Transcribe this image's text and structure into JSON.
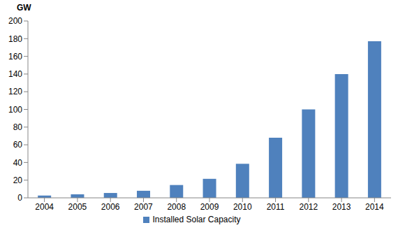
{
  "chart_data": {
    "type": "bar",
    "y_label": "GW",
    "categories": [
      "2004",
      "2005",
      "2006",
      "2007",
      "2008",
      "2009",
      "2010",
      "2011",
      "2012",
      "2013",
      "2014"
    ],
    "series": [
      {
        "name": "Installed Solar Capacity",
        "color": "#4f81bd",
        "values": [
          2.6,
          4,
          5.5,
          8,
          14.5,
          21.5,
          38.5,
          68,
          100,
          140,
          177
        ]
      }
    ],
    "ylim": [
      0,
      200
    ],
    "yticks": [
      0,
      20,
      40,
      60,
      80,
      100,
      120,
      140,
      160,
      180,
      200
    ],
    "grid": false,
    "legend": "bottom"
  }
}
